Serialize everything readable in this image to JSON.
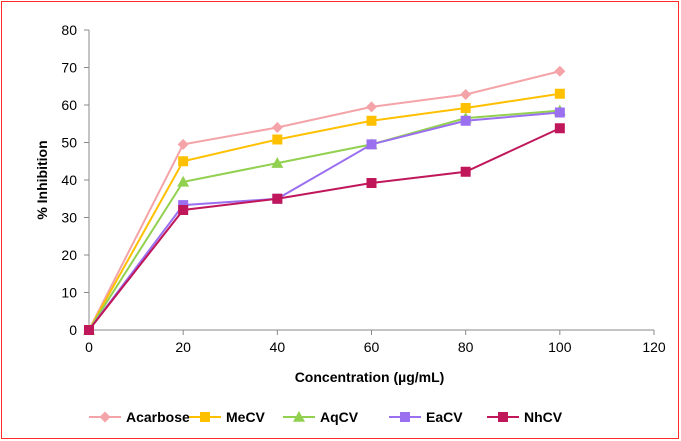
{
  "chart_data": {
    "type": "line",
    "x": [
      0,
      20,
      40,
      60,
      80,
      100
    ],
    "xlabel": "Concentration (µg/mL)",
    "ylabel": "% Inhibition",
    "xlim": [
      0,
      120
    ],
    "ylim": [
      0,
      80
    ],
    "x_ticks": [
      "0",
      "20",
      "40",
      "60",
      "80",
      "100",
      "120"
    ],
    "y_ticks": [
      "0",
      "10",
      "20",
      "30",
      "40",
      "50",
      "60",
      "70",
      "80"
    ],
    "grid": false,
    "legend_position": "bottom",
    "series": [
      {
        "name": "Acarbose",
        "color": "#f4a3a8",
        "marker": "diamond",
        "values": [
          0,
          49.5,
          54,
          59.5,
          62.8,
          69
        ]
      },
      {
        "name": "MeCV",
        "color": "#ffc000",
        "marker": "square",
        "values": [
          0,
          45,
          50.8,
          55.8,
          59.2,
          63
        ]
      },
      {
        "name": "AqCV",
        "color": "#92d050",
        "marker": "triangle",
        "values": [
          0,
          39.5,
          44.5,
          49.5,
          56.5,
          58.5
        ]
      },
      {
        "name": "EaCV",
        "color": "#9a6ff0",
        "marker": "square",
        "values": [
          0,
          33.3,
          35,
          49.5,
          55.8,
          58
        ]
      },
      {
        "name": "NhCV",
        "color": "#c0175a",
        "marker": "square",
        "values": [
          0,
          32,
          35,
          39.2,
          42.2,
          53.8
        ]
      }
    ]
  }
}
